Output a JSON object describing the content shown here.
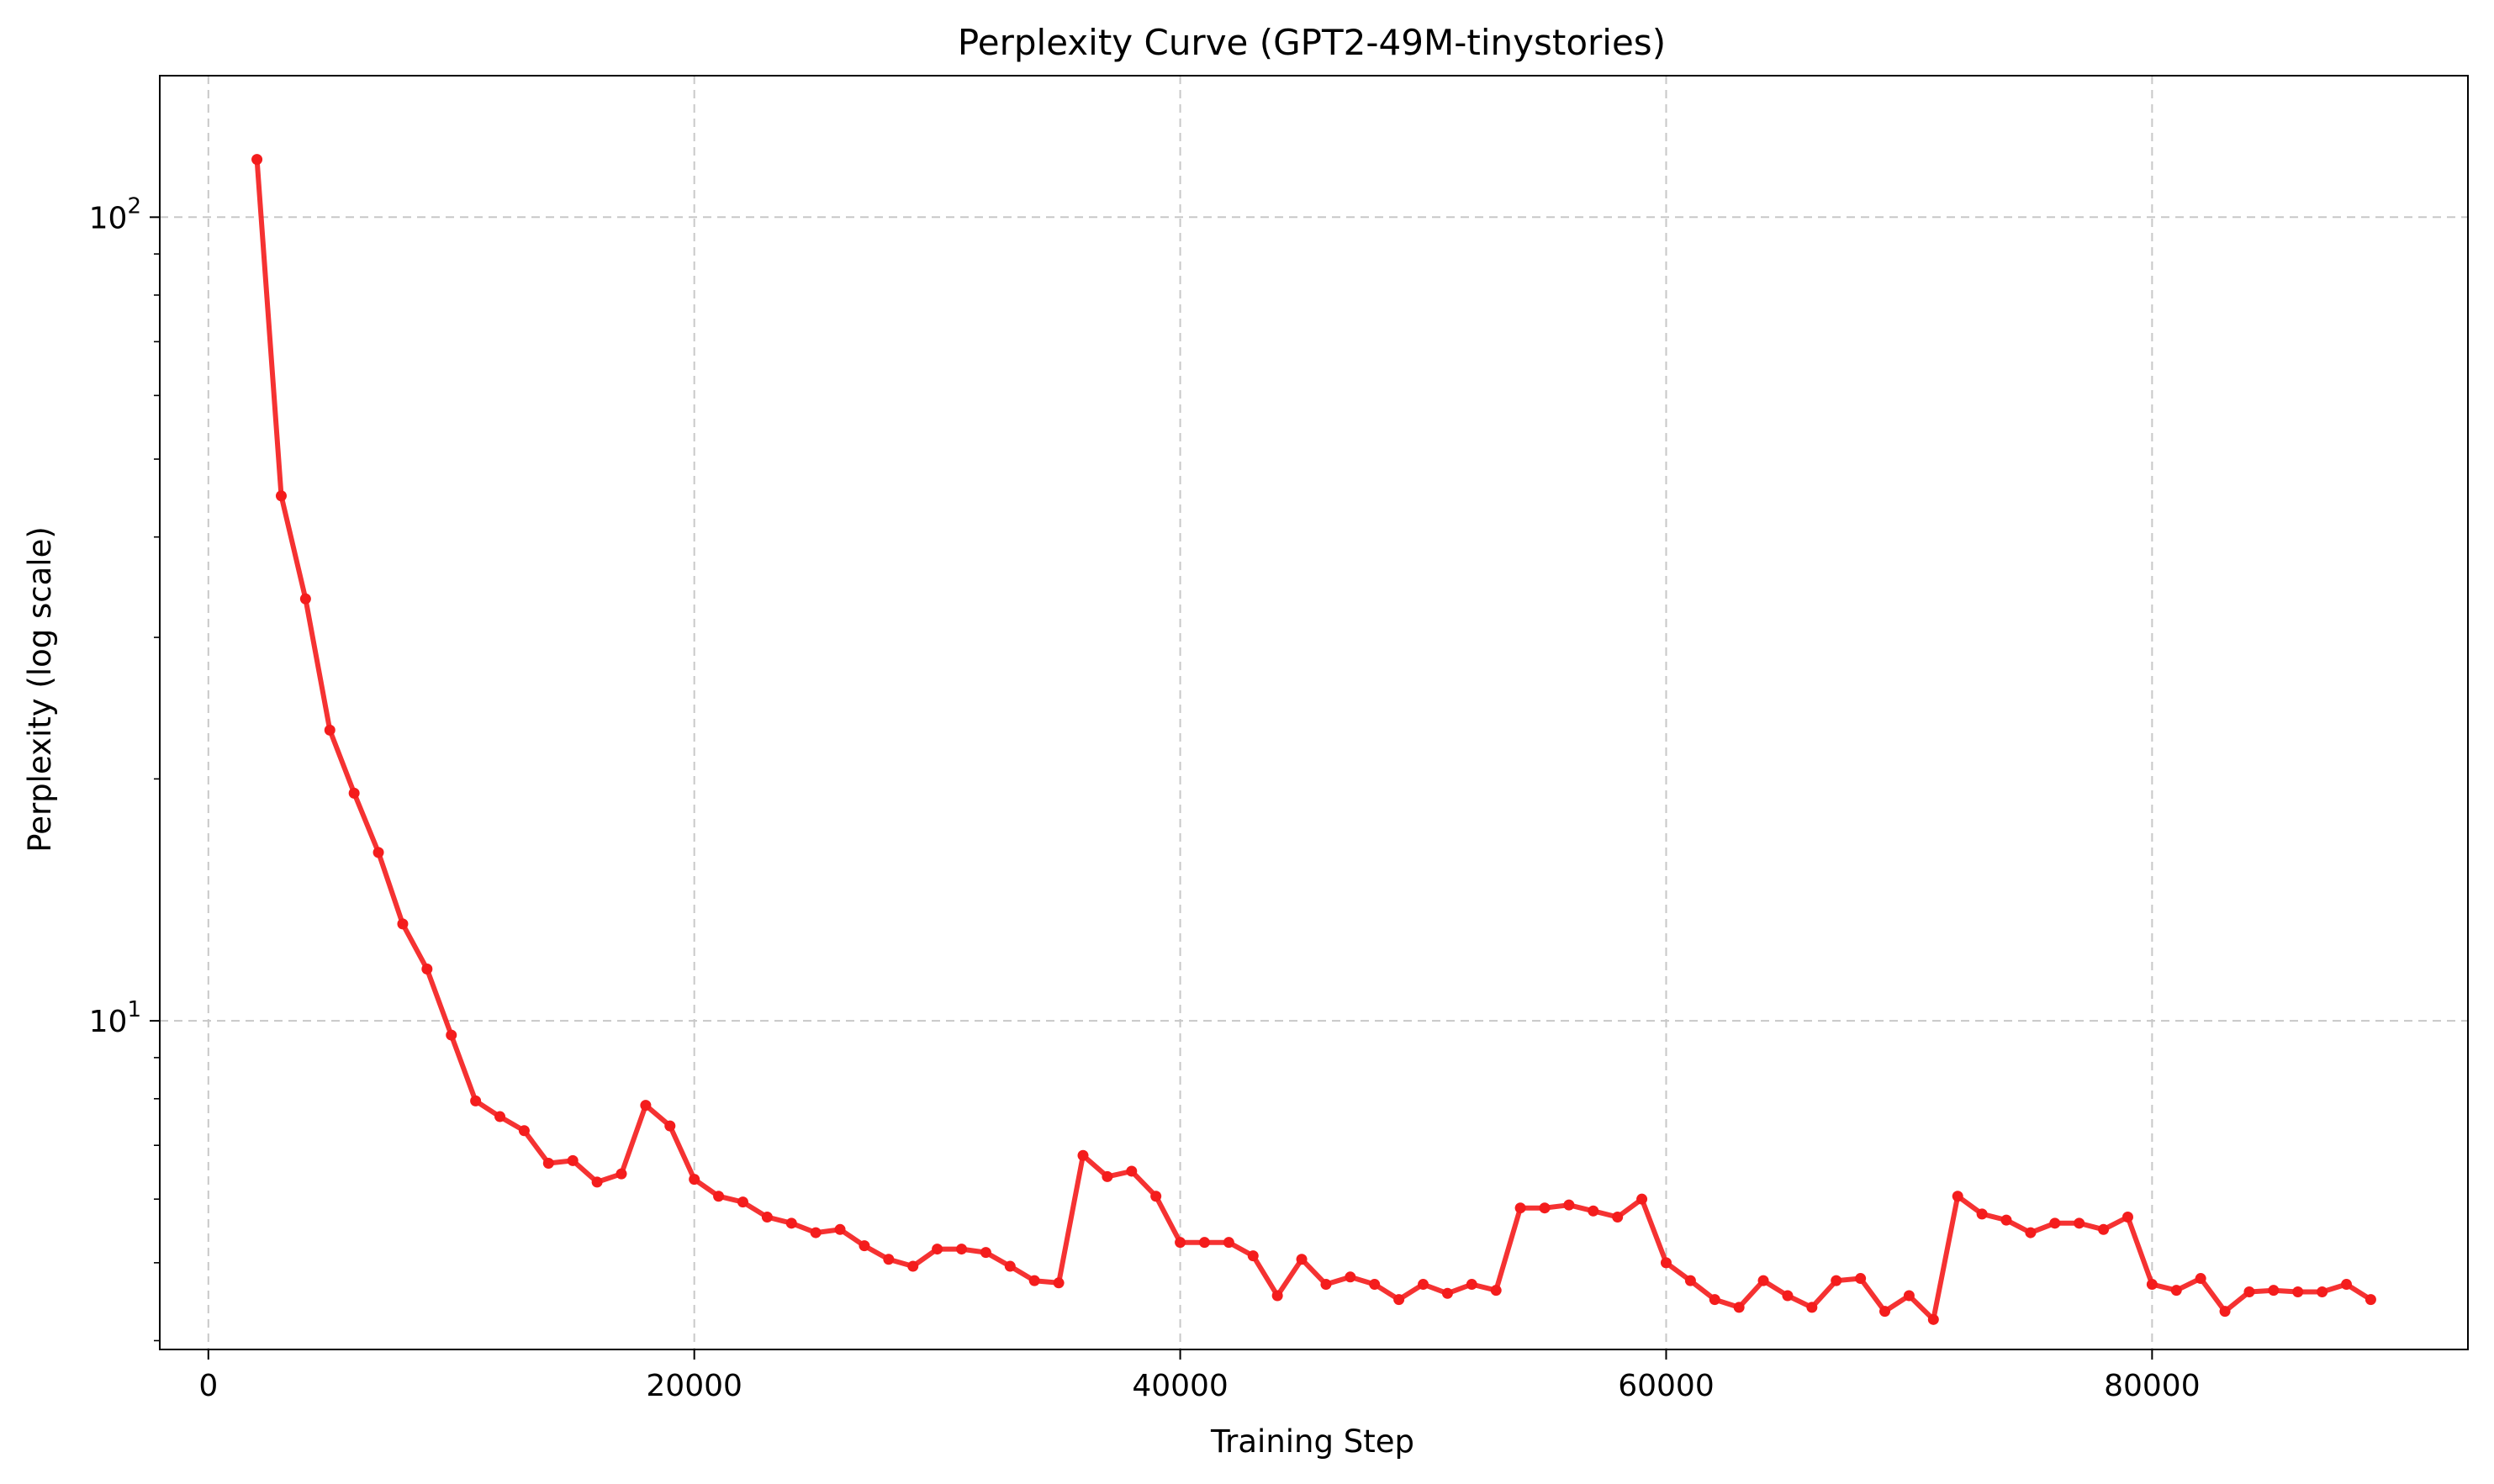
{
  "chart_data": {
    "type": "line",
    "title": "Perplexity Curve (GPT2-49M-tinystories)",
    "xlabel": "Training Step",
    "ylabel": "Perplexity (log scale)",
    "xlim": [
      -2000,
      93000
    ],
    "ylim": [
      3.9,
      150
    ],
    "y_scale": "log",
    "grid": true,
    "x_ticks": [
      {
        "value": 0,
        "label": "0"
      },
      {
        "value": 20000,
        "label": "20000"
      },
      {
        "value": 40000,
        "label": "40000"
      },
      {
        "value": 60000,
        "label": "60000"
      },
      {
        "value": 80000,
        "label": "80000"
      }
    ],
    "y_ticks": [
      {
        "value": 10,
        "base": "10",
        "exp": "1"
      },
      {
        "value": 100,
        "base": "10",
        "exp": "2"
      }
    ],
    "series_color": "#f41c1c",
    "grid_color": "#c8c8c8",
    "x": [
      2000,
      3000,
      4000,
      5000,
      6000,
      7000,
      8000,
      9000,
      10000,
      11000,
      12000,
      13000,
      14000,
      15000,
      16000,
      17000,
      18000,
      19000,
      20000,
      21000,
      22000,
      23000,
      24000,
      25000,
      26000,
      27000,
      28000,
      29000,
      30000,
      31000,
      32000,
      33000,
      34000,
      35000,
      36000,
      37000,
      38000,
      39000,
      40000,
      41000,
      42000,
      43000,
      44000,
      45000,
      46000,
      47000,
      48000,
      49000,
      50000,
      51000,
      52000,
      53000,
      54000,
      55000,
      56000,
      57000,
      58000,
      59000,
      60000,
      61000,
      62000,
      63000,
      64000,
      65000,
      66000,
      67000,
      68000,
      69000,
      70000,
      71000,
      72000,
      73000,
      74000,
      75000,
      76000,
      77000,
      78000,
      79000,
      80000,
      81000,
      82000,
      83000,
      84000,
      85000,
      86000,
      87000,
      88000,
      89000
    ],
    "y": [
      118,
      45,
      33.5,
      23,
      19.2,
      16.2,
      13.2,
      11.6,
      9.6,
      7.95,
      7.6,
      7.3,
      6.65,
      6.7,
      6.3,
      6.45,
      7.85,
      7.4,
      6.35,
      6.05,
      5.95,
      5.7,
      5.6,
      5.45,
      5.5,
      5.25,
      5.05,
      4.95,
      5.2,
      5.2,
      5.15,
      4.95,
      4.75,
      4.72,
      6.8,
      6.4,
      6.5,
      6.05,
      5.3,
      5.3,
      5.3,
      5.1,
      4.55,
      5.05,
      4.7,
      4.8,
      4.7,
      4.5,
      4.7,
      4.58,
      4.7,
      4.62,
      5.85,
      5.85,
      5.9,
      5.8,
      5.7,
      6.0,
      5.0,
      4.75,
      4.5,
      4.4,
      4.75,
      4.55,
      4.4,
      4.75,
      4.78,
      4.35,
      4.55,
      4.25,
      6.05,
      5.75,
      5.65,
      5.45,
      5.6,
      5.6,
      5.5,
      5.7,
      4.7,
      4.62,
      4.78,
      4.35,
      4.6,
      4.62,
      4.6,
      4.6,
      4.7,
      4.5
    ]
  }
}
